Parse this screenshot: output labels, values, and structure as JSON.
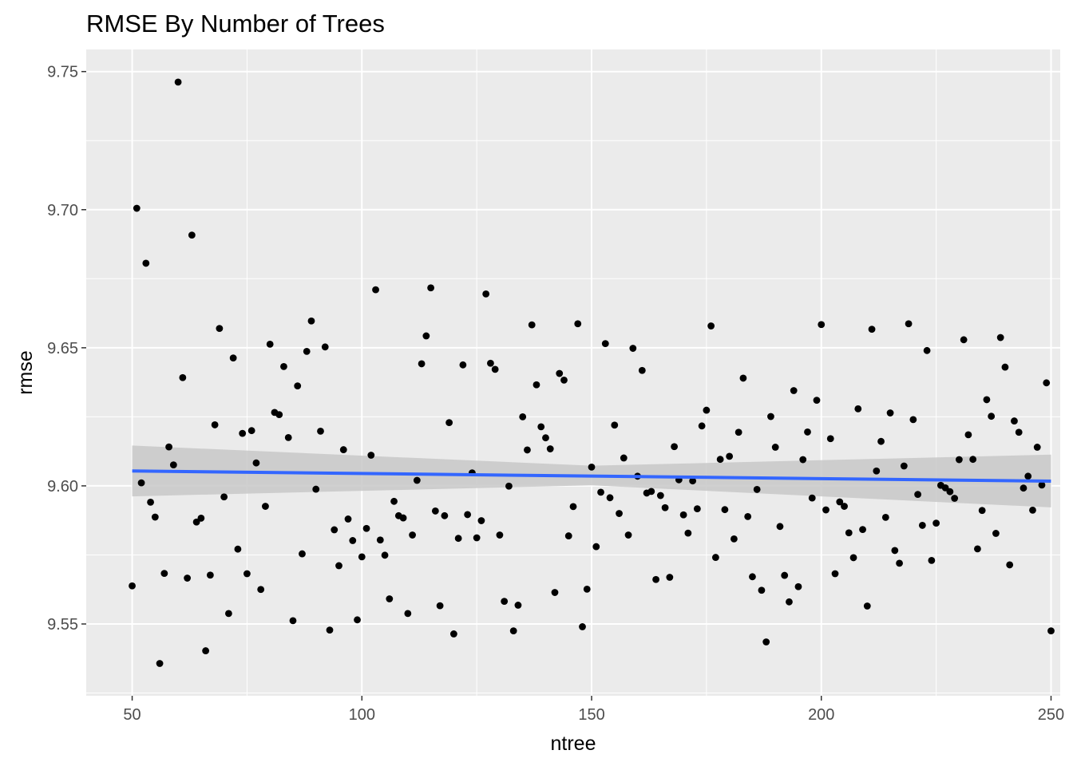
{
  "chart_data": {
    "type": "scatter",
    "title": "RMSE By Number of Trees",
    "xlabel": "ntree",
    "ylabel": "rmse",
    "xlim": [
      40,
      252
    ],
    "ylim": [
      9.524,
      9.758
    ],
    "x_ticks": [
      50,
      100,
      150,
      200,
      250
    ],
    "y_ticks": [
      9.55,
      9.6,
      9.65,
      9.7,
      9.75
    ],
    "x_tick_labels": [
      "50",
      "100",
      "150",
      "200",
      "250"
    ],
    "y_tick_labels": [
      "9.55",
      "9.60",
      "9.65",
      "9.70",
      "9.75"
    ],
    "grid": true,
    "panel_background": "#EBEBEB",
    "point_color": "#000000",
    "smooth": {
      "method": "lm",
      "color": "#3366FF",
      "band_color": "#C8C8C8",
      "fit": [
        [
          50,
          9.6054
        ],
        [
          250,
          9.6017
        ]
      ],
      "band_upper": [
        [
          50,
          9.6146
        ],
        [
          150,
          9.6073
        ],
        [
          250,
          9.6113
        ]
      ],
      "band_lower": [
        [
          50,
          9.5962
        ],
        [
          150,
          9.6002
        ],
        [
          250,
          9.5922
        ]
      ]
    },
    "points": [
      [
        50,
        9.5638
      ],
      [
        51,
        9.7005
      ],
      [
        52,
        9.6011
      ],
      [
        53,
        9.6806
      ],
      [
        54,
        9.5941
      ],
      [
        55,
        9.5887
      ],
      [
        56,
        9.5357
      ],
      [
        57,
        9.5683
      ],
      [
        58,
        9.6141
      ],
      [
        59,
        9.6076
      ],
      [
        60,
        9.7462
      ],
      [
        61,
        9.6392
      ],
      [
        62,
        9.5666
      ],
      [
        63,
        9.6908
      ],
      [
        64,
        9.5869
      ],
      [
        65,
        9.5883
      ],
      [
        66,
        9.5403
      ],
      [
        67,
        9.5677
      ],
      [
        68,
        9.6221
      ],
      [
        69,
        9.657
      ],
      [
        70,
        9.596
      ],
      [
        71,
        9.5538
      ],
      [
        72,
        9.6463
      ],
      [
        73,
        9.5771
      ],
      [
        74,
        9.619
      ],
      [
        75,
        9.5682
      ],
      [
        76,
        9.62
      ],
      [
        77,
        9.6083
      ],
      [
        78,
        9.5625
      ],
      [
        79,
        9.5926
      ],
      [
        80,
        9.6513
      ],
      [
        81,
        9.6266
      ],
      [
        82,
        9.6258
      ],
      [
        83,
        9.6432
      ],
      [
        84,
        9.6175
      ],
      [
        85,
        9.5512
      ],
      [
        86,
        9.6362
      ],
      [
        87,
        9.5754
      ],
      [
        88,
        9.6487
      ],
      [
        89,
        9.6597
      ],
      [
        90,
        9.5988
      ],
      [
        91,
        9.6198
      ],
      [
        92,
        9.6503
      ],
      [
        93,
        9.5478
      ],
      [
        94,
        9.5841
      ],
      [
        95,
        9.5711
      ],
      [
        96,
        9.6131
      ],
      [
        97,
        9.588
      ],
      [
        98,
        9.5802
      ],
      [
        99,
        9.5515
      ],
      [
        100,
        9.5743
      ],
      [
        101,
        9.5846
      ],
      [
        102,
        9.6111
      ],
      [
        103,
        9.671
      ],
      [
        104,
        9.5804
      ],
      [
        105,
        9.5749
      ],
      [
        106,
        9.5591
      ],
      [
        107,
        9.5944
      ],
      [
        108,
        9.5892
      ],
      [
        109,
        9.5884
      ],
      [
        110,
        9.5538
      ],
      [
        111,
        9.5822
      ],
      [
        112,
        9.602
      ],
      [
        113,
        9.6442
      ],
      [
        114,
        9.6543
      ],
      [
        115,
        9.6717
      ],
      [
        116,
        9.5909
      ],
      [
        117,
        9.5566
      ],
      [
        118,
        9.5892
      ],
      [
        119,
        9.6229
      ],
      [
        120,
        9.5464
      ],
      [
        121,
        9.581
      ],
      [
        122,
        9.6438
      ],
      [
        123,
        9.5896
      ],
      [
        124,
        9.6047
      ],
      [
        125,
        9.5812
      ],
      [
        126,
        9.5874
      ],
      [
        127,
        9.6695
      ],
      [
        128,
        9.6444
      ],
      [
        129,
        9.6422
      ],
      [
        130,
        9.5822
      ],
      [
        131,
        9.5582
      ],
      [
        132,
        9.5999
      ],
      [
        133,
        9.5475
      ],
      [
        134,
        9.5568
      ],
      [
        135,
        9.625
      ],
      [
        136,
        9.613
      ],
      [
        137,
        9.6583
      ],
      [
        138,
        9.6366
      ],
      [
        139,
        9.6214
      ],
      [
        140,
        9.6174
      ],
      [
        141,
        9.6134
      ],
      [
        142,
        9.5614
      ],
      [
        143,
        9.6407
      ],
      [
        144,
        9.6383
      ],
      [
        145,
        9.5819
      ],
      [
        146,
        9.5925
      ],
      [
        147,
        9.6587
      ],
      [
        148,
        9.549
      ],
      [
        149,
        9.5626
      ],
      [
        150,
        9.6068
      ],
      [
        151,
        9.578
      ],
      [
        152,
        9.5977
      ],
      [
        153,
        9.6515
      ],
      [
        154,
        9.5957
      ],
      [
        155,
        9.622
      ],
      [
        156,
        9.59
      ],
      [
        157,
        9.6101
      ],
      [
        158,
        9.5822
      ],
      [
        159,
        9.6498
      ],
      [
        160,
        9.6035
      ],
      [
        161,
        9.6418
      ],
      [
        162,
        9.5974
      ],
      [
        163,
        9.598
      ],
      [
        164,
        9.5661
      ],
      [
        165,
        9.5965
      ],
      [
        166,
        9.5921
      ],
      [
        167,
        9.5669
      ],
      [
        168,
        9.6142
      ],
      [
        169,
        9.6022
      ],
      [
        170,
        9.5895
      ],
      [
        171,
        9.5829
      ],
      [
        172,
        9.6018
      ],
      [
        173,
        9.5917
      ],
      [
        174,
        9.6217
      ],
      [
        175,
        9.6274
      ],
      [
        176,
        9.6579
      ],
      [
        177,
        9.5741
      ],
      [
        178,
        9.6096
      ],
      [
        179,
        9.5914
      ],
      [
        180,
        9.6107
      ],
      [
        181,
        9.5808
      ],
      [
        182,
        9.6194
      ],
      [
        183,
        9.639
      ],
      [
        184,
        9.5889
      ],
      [
        185,
        9.5671
      ],
      [
        186,
        9.5987
      ],
      [
        187,
        9.5622
      ],
      [
        188,
        9.5435
      ],
      [
        189,
        9.6251
      ],
      [
        190,
        9.614
      ],
      [
        191,
        9.5853
      ],
      [
        192,
        9.5676
      ],
      [
        193,
        9.558
      ],
      [
        194,
        9.6345
      ],
      [
        195,
        9.5635
      ],
      [
        196,
        9.6095
      ],
      [
        197,
        9.6195
      ],
      [
        198,
        9.5956
      ],
      [
        199,
        9.631
      ],
      [
        200,
        9.6584
      ],
      [
        201,
        9.5913
      ],
      [
        202,
        9.6171
      ],
      [
        203,
        9.5682
      ],
      [
        204,
        9.5942
      ],
      [
        205,
        9.5926
      ],
      [
        206,
        9.583
      ],
      [
        207,
        9.574
      ],
      [
        208,
        9.6279
      ],
      [
        209,
        9.5842
      ],
      [
        210,
        9.5565
      ],
      [
        211,
        9.6567
      ],
      [
        212,
        9.6054
      ],
      [
        213,
        9.6161
      ],
      [
        214,
        9.5886
      ],
      [
        215,
        9.6264
      ],
      [
        216,
        9.5766
      ],
      [
        217,
        9.572
      ],
      [
        218,
        9.6072
      ],
      [
        219,
        9.6587
      ],
      [
        220,
        9.624
      ],
      [
        221,
        9.5969
      ],
      [
        222,
        9.5857
      ],
      [
        223,
        9.649
      ],
      [
        224,
        9.573
      ],
      [
        225,
        9.5865
      ],
      [
        226,
        9.6002
      ],
      [
        227,
        9.5993
      ],
      [
        228,
        9.5979
      ],
      [
        229,
        9.5955
      ],
      [
        230,
        9.6095
      ],
      [
        231,
        9.6529
      ],
      [
        232,
        9.6185
      ],
      [
        233,
        9.6096
      ],
      [
        234,
        9.5772
      ],
      [
        235,
        9.5911
      ],
      [
        236,
        9.6312
      ],
      [
        237,
        9.6252
      ],
      [
        238,
        9.5828
      ],
      [
        239,
        9.6537
      ],
      [
        240,
        9.643
      ],
      [
        241,
        9.5714
      ],
      [
        242,
        9.6235
      ],
      [
        243,
        9.6194
      ],
      [
        244,
        9.5992
      ],
      [
        245,
        9.6035
      ],
      [
        246,
        9.5912
      ],
      [
        247,
        9.614
      ],
      [
        248,
        9.6003
      ],
      [
        249,
        9.6373
      ],
      [
        250,
        9.5475
      ]
    ]
  }
}
